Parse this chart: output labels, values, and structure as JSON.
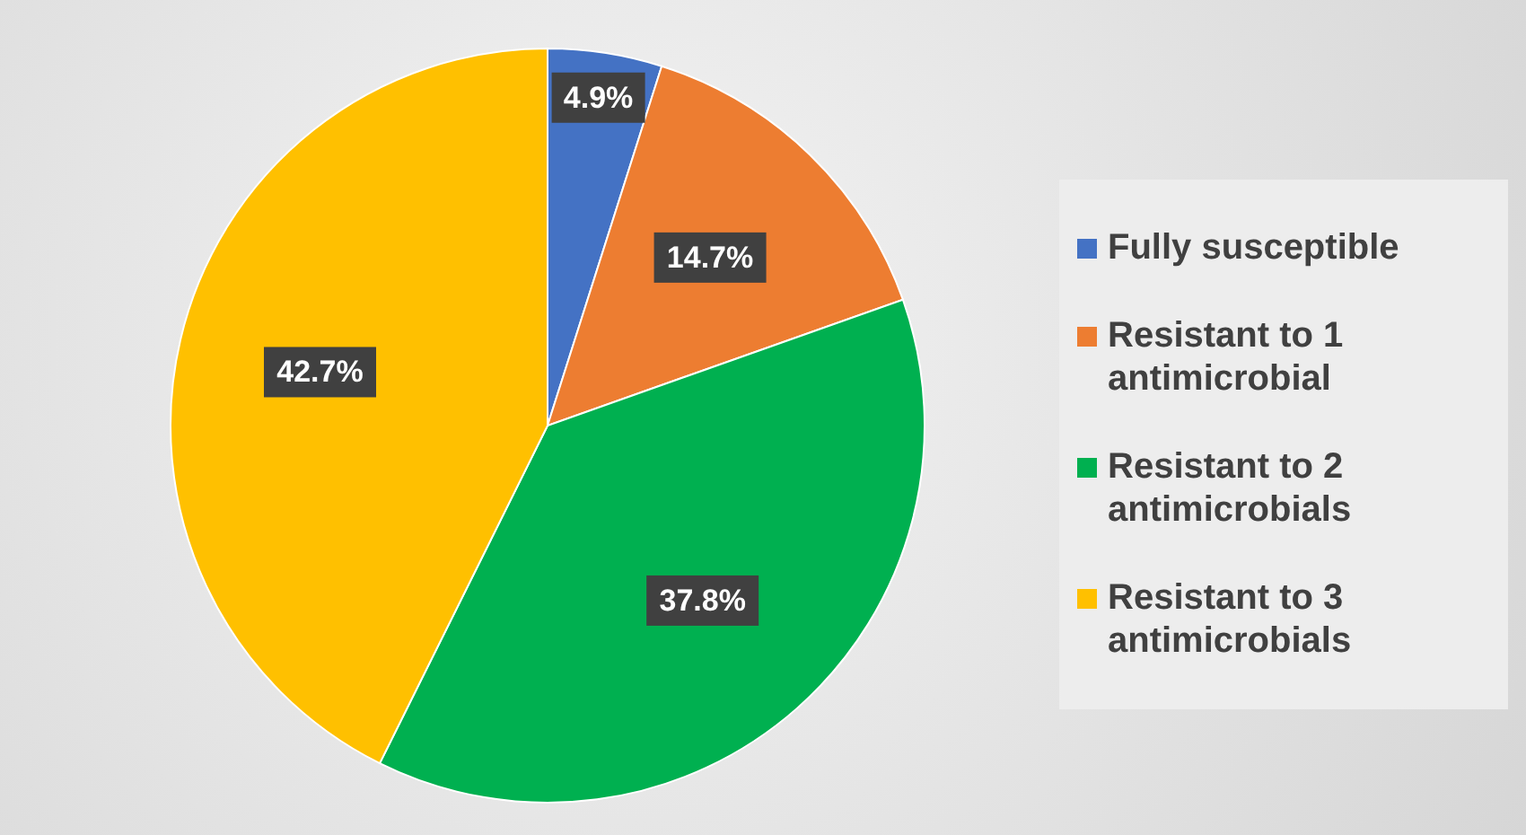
{
  "chart_data": {
    "type": "pie",
    "categories": [
      "Fully susceptible",
      "Resistant to 1 antimicrobial",
      "Resistant to 2 antimicrobials",
      "Resistant to 3 antimicrobials"
    ],
    "values": [
      4.9,
      14.7,
      37.8,
      42.7
    ],
    "value_labels": [
      "4.9%",
      "14.7%",
      "37.8%",
      "42.7%"
    ],
    "colors": [
      "#4472c4",
      "#ed7d31",
      "#00b050",
      "#ffc000"
    ],
    "legend": "right"
  }
}
